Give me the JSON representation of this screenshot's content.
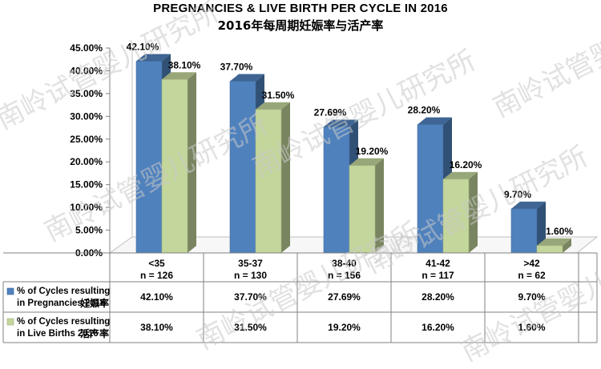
{
  "title": "PREGNANCIES & LIVE BIRTH PER CYCLE IN 2016",
  "subtitle": "2016年每周期妊娠率与活产率",
  "watermark": "南岭试管婴儿研究所",
  "chart_data": {
    "type": "bar",
    "categories": [
      "<35",
      "35-37",
      "38-40",
      "41-42",
      ">42"
    ],
    "category_counts": [
      "n = 126",
      "n = 130",
      "n = 156",
      "n = 117",
      "n = 62"
    ],
    "ylim": [
      0,
      45
    ],
    "yticks": [
      "0.00%",
      "5.00%",
      "10.00%",
      "15.00%",
      "20.00%",
      "25.00%",
      "30.00%",
      "35.00%",
      "40.00%",
      "45.00%"
    ],
    "grid": false,
    "series": [
      {
        "name_line1": "% of Cycles resulting",
        "name_line2": "in Pregnancies 2016",
        "name_cn": "妊娠率",
        "color": "#4f81bd",
        "values": [
          42.1,
          37.7,
          27.69,
          28.2,
          9.7
        ],
        "labels": [
          "42.10%",
          "37.70%",
          "27.69%",
          "28.20%",
          "9.70%"
        ]
      },
      {
        "name_line1": "% of Cycles resulting",
        "name_line2": "in Live Births 2016",
        "name_cn": "活产率",
        "color": "#c3d69b",
        "values": [
          38.1,
          31.5,
          19.2,
          16.2,
          1.6
        ],
        "labels": [
          "38.10%",
          "31.50%",
          "19.20%",
          "16.20%",
          "1.60%"
        ]
      }
    ]
  }
}
